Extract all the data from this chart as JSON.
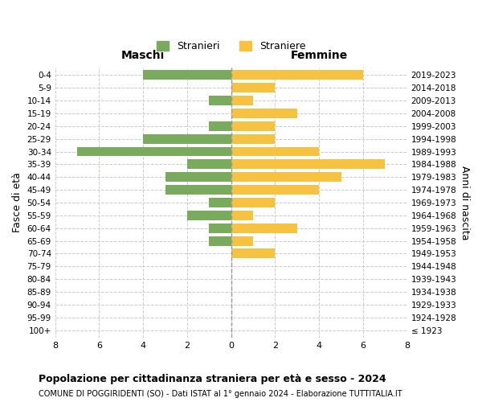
{
  "age_groups": [
    "100+",
    "95-99",
    "90-94",
    "85-89",
    "80-84",
    "75-79",
    "70-74",
    "65-69",
    "60-64",
    "55-59",
    "50-54",
    "45-49",
    "40-44",
    "35-39",
    "30-34",
    "25-29",
    "20-24",
    "15-19",
    "10-14",
    "5-9",
    "0-4"
  ],
  "birth_years": [
    "≤ 1923",
    "1924-1928",
    "1929-1933",
    "1934-1938",
    "1939-1943",
    "1944-1948",
    "1949-1953",
    "1954-1958",
    "1959-1963",
    "1964-1968",
    "1969-1973",
    "1974-1978",
    "1979-1983",
    "1984-1988",
    "1989-1993",
    "1994-1998",
    "1999-2003",
    "2004-2008",
    "2009-2013",
    "2014-2018",
    "2019-2023"
  ],
  "males": [
    0,
    0,
    0,
    0,
    0,
    0,
    0,
    1,
    1,
    2,
    1,
    3,
    3,
    2,
    7,
    4,
    1,
    0,
    1,
    0,
    4
  ],
  "females": [
    0,
    0,
    0,
    0,
    0,
    0,
    2,
    1,
    3,
    1,
    2,
    4,
    5,
    7,
    4,
    2,
    2,
    3,
    1,
    2,
    6
  ],
  "male_color": "#7aaa5e",
  "female_color": "#f5c242",
  "title": "Popolazione per cittadinanza straniera per età e sesso - 2024",
  "subtitle": "COMUNE DI POGGIRIDENTI (SO) - Dati ISTAT al 1° gennaio 2024 - Elaborazione TUTTITALIA.IT",
  "legend_male": "Stranieri",
  "legend_female": "Straniere",
  "xlabel_left": "Maschi",
  "xlabel_right": "Femmine",
  "ylabel_left": "Fasce di età",
  "ylabel_right": "Anni di nascita",
  "xlim": 8,
  "background_color": "#ffffff",
  "grid_color": "#cccccc"
}
